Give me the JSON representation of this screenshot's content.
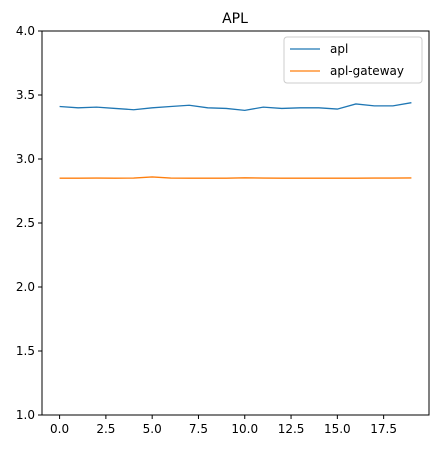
{
  "chart_data": {
    "type": "line",
    "title": "APL",
    "xlabel": "",
    "ylabel": "",
    "xlim": [
      -0.95,
      19.95
    ],
    "ylim": [
      1.0,
      4.0
    ],
    "x": [
      0,
      1,
      2,
      3,
      4,
      5,
      6,
      7,
      8,
      9,
      10,
      11,
      12,
      13,
      14,
      15,
      16,
      17,
      18,
      19
    ],
    "xticks": [
      0.0,
      2.5,
      5.0,
      7.5,
      10.0,
      12.5,
      15.0,
      17.5
    ],
    "xtick_labels": [
      "0.0",
      "2.5",
      "5.0",
      "7.5",
      "10.0",
      "12.5",
      "15.0",
      "17.5"
    ],
    "yticks": [
      1.0,
      1.5,
      2.0,
      2.5,
      3.0,
      3.5,
      4.0
    ],
    "ytick_labels": [
      "1.0",
      "1.5",
      "2.0",
      "2.5",
      "3.0",
      "3.5",
      "4.0"
    ],
    "grid": false,
    "legend_position": "top-right",
    "series": [
      {
        "name": "apl",
        "color": "#1f77b4",
        "values": [
          3.41,
          3.4,
          3.405,
          3.395,
          3.385,
          3.4,
          3.41,
          3.42,
          3.4,
          3.395,
          3.38,
          3.405,
          3.395,
          3.4,
          3.4,
          3.39,
          3.43,
          3.415,
          3.415,
          3.44
        ]
      },
      {
        "name": "apl-gateway",
        "color": "#ff7f0e",
        "values": [
          2.85,
          2.85,
          2.851,
          2.85,
          2.851,
          2.86,
          2.851,
          2.85,
          2.85,
          2.85,
          2.853,
          2.851,
          2.85,
          2.85,
          2.85,
          2.85,
          2.85,
          2.851,
          2.851,
          2.852
        ]
      }
    ]
  }
}
